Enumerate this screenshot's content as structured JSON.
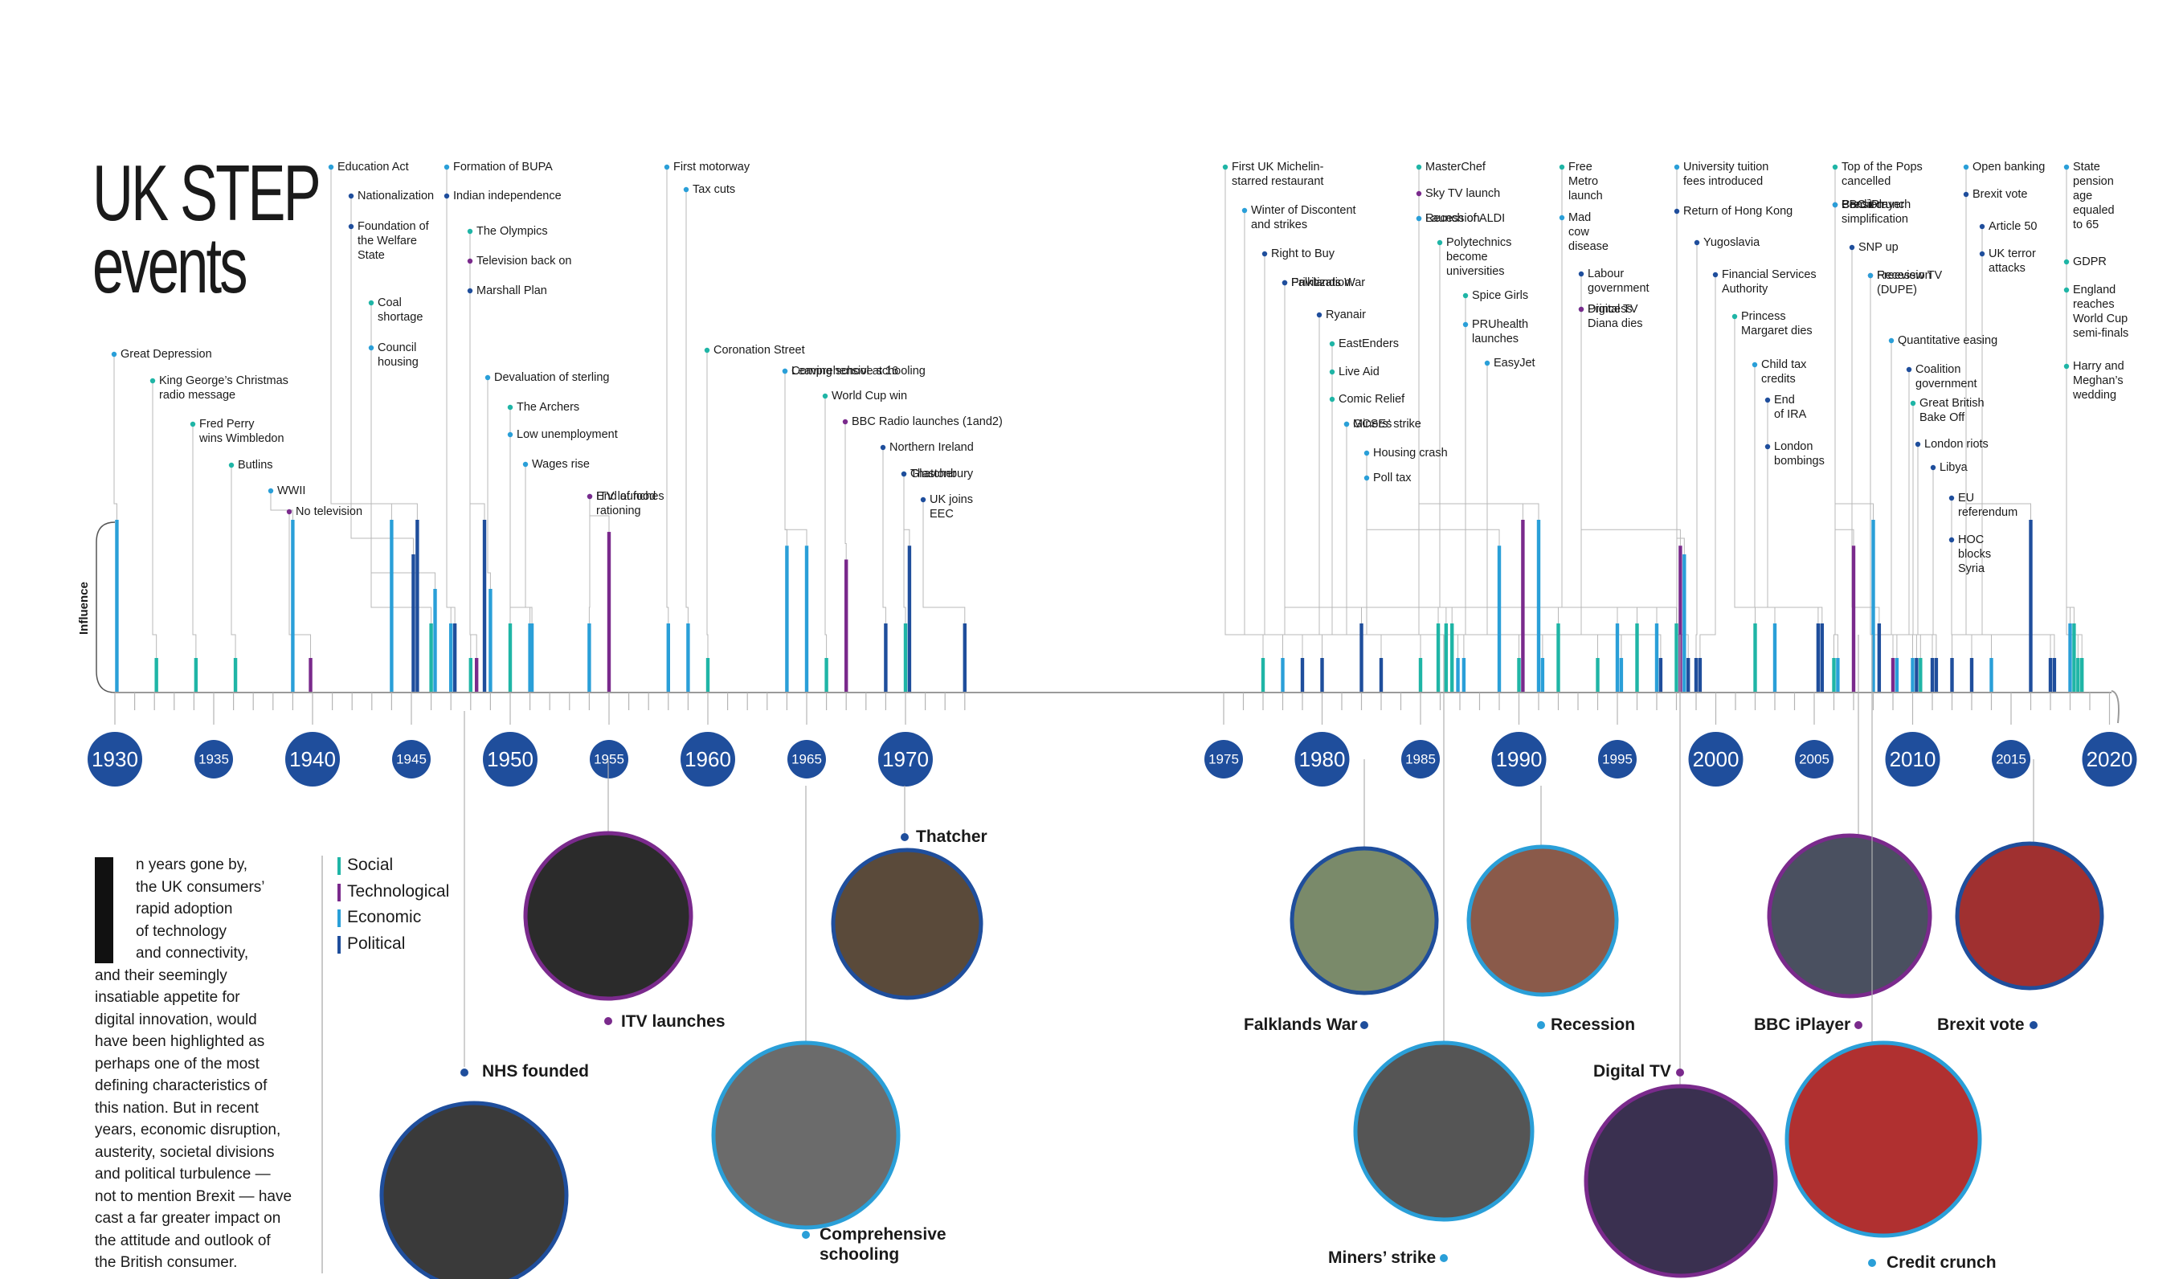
{
  "title": {
    "line1": "UK STEP",
    "line2": "events"
  },
  "axis_label": "Influence",
  "legend": [
    {
      "label": "Social",
      "color": "#1fb5a6"
    },
    {
      "label": "Technological",
      "color": "#7a2a8c"
    },
    {
      "label": "Economic",
      "color": "#2a9fd8"
    },
    {
      "label": "Political",
      "color": "#1f4e9c"
    }
  ],
  "intro": {
    "lines": [
      "n years gone by,",
      "the UK consumers’",
      "rapid adoption",
      "of technology",
      "and connectivity,",
      "and their seemingly",
      "insatiable appetite for",
      "digital innovation, would",
      "have been highlighted as",
      "perhaps one of the most",
      "defining characteristics of",
      "this nation. But in recent",
      "years, economic disruption,",
      "austerity, societal divisions",
      "and political turbulence —",
      "not to mention Brexit — have",
      "cast a far greater impact on",
      "the attitude and outlook of",
      "the British consumer."
    ]
  },
  "years": [
    {
      "label": "1930",
      "major": true
    },
    {
      "label": "1935",
      "major": false
    },
    {
      "label": "1940",
      "major": true
    },
    {
      "label": "1945",
      "major": false
    },
    {
      "label": "1950",
      "major": true
    },
    {
      "label": "1955",
      "major": false
    },
    {
      "label": "1960",
      "major": true
    },
    {
      "label": "1965",
      "major": false
    },
    {
      "label": "1970",
      "major": true
    },
    {
      "label": "1975",
      "major": false
    },
    {
      "label": "1980",
      "major": true
    },
    {
      "label": "1985",
      "major": false
    },
    {
      "label": "1990",
      "major": true
    },
    {
      "label": "1995",
      "major": false
    },
    {
      "label": "2000",
      "major": true
    },
    {
      "label": "2005",
      "major": false
    },
    {
      "label": "2010",
      "major": true
    },
    {
      "label": "2015",
      "major": false
    },
    {
      "label": "2020",
      "major": true
    }
  ],
  "events": [
    {
      "lines": [
        "Great Depression"
      ],
      "year": 1930.1,
      "cat": "economic",
      "influence": 1.0
    },
    {
      "lines": [
        "King George’s Christmas",
        "radio message"
      ],
      "year": 1932.1,
      "cat": "social",
      "influence": 0.2
    },
    {
      "lines": [
        "Fred Perry",
        "wins Wimbledon"
      ],
      "year": 1934.1,
      "cat": "social",
      "influence": 0.2
    },
    {
      "lines": [
        "Butlins"
      ],
      "year": 1936.1,
      "cat": "social",
      "influence": 0.2
    },
    {
      "lines": [
        "WWII"
      ],
      "year": 1939.0,
      "cat": "economic",
      "influence": 1.0
    },
    {
      "lines": [
        "No television"
      ],
      "year": 1939.9,
      "cat": "technological",
      "influence": 0.2
    },
    {
      "lines": [
        "Education Act"
      ],
      "year": 1944.0,
      "cat": "economic",
      "influence": 1.0
    },
    {
      "lines": [
        "Nationalization"
      ],
      "year": 1945.1,
      "cat": "political",
      "influence": 0.8
    },
    {
      "lines": [
        "Foundation of",
        "the Welfare",
        "State"
      ],
      "year": 1945.3,
      "cat": "political",
      "influence": 1.0
    },
    {
      "lines": [
        "Coal",
        "shortage"
      ],
      "year": 1946.0,
      "cat": "social",
      "influence": 0.4
    },
    {
      "lines": [
        "Council",
        "housing"
      ],
      "year": 1946.2,
      "cat": "economic",
      "influence": 0.6
    },
    {
      "lines": [
        "Formation of BUPA"
      ],
      "year": 1947.0,
      "cat": "economic",
      "influence": 0.4
    },
    {
      "lines": [
        "Indian independence"
      ],
      "year": 1947.2,
      "cat": "political",
      "influence": 0.4
    },
    {
      "lines": [
        "The Olympics"
      ],
      "year": 1948.0,
      "cat": "social",
      "influence": 0.2
    },
    {
      "lines": [
        "Television back on"
      ],
      "year": 1948.3,
      "cat": "technological",
      "influence": 0.2
    },
    {
      "lines": [
        "Marshall Plan"
      ],
      "year": 1948.7,
      "cat": "political",
      "influence": 1.0
    },
    {
      "lines": [
        "Devaluation of sterling"
      ],
      "year": 1949.0,
      "cat": "economic",
      "influence": 0.6
    },
    {
      "lines": [
        "The Archers"
      ],
      "year": 1950.0,
      "cat": "social",
      "influence": 0.4
    },
    {
      "lines": [
        "Low unemployment"
      ],
      "year": 1951.0,
      "cat": "economic",
      "influence": 0.4
    },
    {
      "lines": [
        "Wages rise"
      ],
      "year": 1951.1,
      "cat": "economic",
      "influence": 0.4
    },
    {
      "lines": [
        "End of food",
        "rationing"
      ],
      "year": 1954.0,
      "cat": "economic",
      "influence": 0.4
    },
    {
      "lines": [
        "ITV launches"
      ],
      "year": 1955.0,
      "cat": "technological",
      "influence": 0.93
    },
    {
      "lines": [
        "First motorway"
      ],
      "year": 1958.0,
      "cat": "economic",
      "influence": 0.4
    },
    {
      "lines": [
        "Tax cuts"
      ],
      "year": 1959.0,
      "cat": "economic",
      "influence": 0.4
    },
    {
      "lines": [
        "Coronation Street"
      ],
      "year": 1960.0,
      "cat": "social",
      "influence": 0.2
    },
    {
      "lines": [
        "Leaving school at 16"
      ],
      "year": 1964.0,
      "cat": "economic",
      "influence": 0.85
    },
    {
      "lines": [
        "Comprehensive schooling"
      ],
      "year": 1965.0,
      "cat": "economic",
      "influence": 0.85
    },
    {
      "lines": [
        "World Cup win"
      ],
      "year": 1966.0,
      "cat": "social",
      "influence": 0.2
    },
    {
      "lines": [
        "BBC Radio launches (1and2)"
      ],
      "year": 1967.0,
      "cat": "technological",
      "influence": 0.77
    },
    {
      "lines": [
        "Northern Ireland"
      ],
      "year": 1969.0,
      "cat": "political",
      "influence": 0.4
    },
    {
      "lines": [
        "Glastonbury"
      ],
      "year": 1970.0,
      "cat": "social",
      "influence": 0.4
    },
    {
      "lines": [
        "Thatcher"
      ],
      "year": 1970.2,
      "cat": "political",
      "influence": 0.85
    },
    {
      "lines": [
        "UK joins",
        "EEC"
      ],
      "year": 1973.0,
      "cat": "political",
      "influence": 0.4
    },
    {
      "lines": [
        "First UK Michelin-",
        "starred restaurant"
      ],
      "year": 1977.0,
      "cat": "social",
      "influence": 0.2
    },
    {
      "lines": [
        "Winter of Discontent",
        "and strikes"
      ],
      "year": 1978.0,
      "cat": "economic",
      "influence": 0.2
    },
    {
      "lines": [
        "Right to Buy"
      ],
      "year": 1979.0,
      "cat": "political",
      "influence": 0.2
    },
    {
      "lines": [
        "Privitization"
      ],
      "year": 1980.0,
      "cat": "political",
      "influence": 0.2
    },
    {
      "lines": [
        "Falklands War"
      ],
      "year": 1982.0,
      "cat": "political",
      "influence": 0.4
    },
    {
      "lines": [
        "Ryanair"
      ],
      "year": 1983.0,
      "cat": "political",
      "influence": 0.2
    },
    {
      "lines": [
        "EastEnders"
      ],
      "year": 1985.0,
      "cat": "social",
      "influence": 0.2
    },
    {
      "lines": [
        "Live Aid"
      ],
      "year": 1985.9,
      "cat": "social",
      "influence": 0.4
    },
    {
      "lines": [
        "Comic Relief"
      ],
      "year": 1986.3,
      "cat": "social",
      "influence": 0.4
    },
    {
      "lines": [
        "GCSEs"
      ],
      "year": 1986.6,
      "cat": "social",
      "influence": 0.4
    },
    {
      "lines": [
        "Miners’ strike"
      ],
      "year": 1986.9,
      "cat": "economic",
      "influence": 0.2
    },
    {
      "lines": [
        "Housing crash"
      ],
      "year": 1987.2,
      "cat": "economic",
      "influence": 0.2
    },
    {
      "lines": [
        "Poll tax"
      ],
      "year": 1989.0,
      "cat": "economic",
      "influence": 0.85
    },
    {
      "lines": [
        "MasterChef"
      ],
      "year": 1990.0,
      "cat": "social",
      "influence": 0.2
    },
    {
      "lines": [
        "Sky TV launch"
      ],
      "year": 1990.2,
      "cat": "technological",
      "influence": 1.0
    },
    {
      "lines": [
        "Launch of ALDI"
      ],
      "year": 1991.0,
      "cat": "economic",
      "influence": 1.0
    },
    {
      "lines": [
        "Recession"
      ],
      "year": 1991.2,
      "cat": "economic",
      "influence": 0.2
    },
    {
      "lines": [
        "Polytechnics",
        "become",
        "universities"
      ],
      "year": 1992.0,
      "cat": "social",
      "influence": 0.4
    },
    {
      "lines": [
        "Spice Girls"
      ],
      "year": 1994.0,
      "cat": "social",
      "influence": 0.2
    },
    {
      "lines": [
        "PRUhealth",
        "launches"
      ],
      "year": 1995.0,
      "cat": "economic",
      "influence": 0.4
    },
    {
      "lines": [
        "EasyJet"
      ],
      "year": 1995.2,
      "cat": "economic",
      "influence": 0.2
    },
    {
      "lines": [
        "Free",
        "Metro",
        "launch"
      ],
      "year": 1996.0,
      "cat": "social",
      "influence": 0.4
    },
    {
      "lines": [
        "Mad",
        "cow",
        "disease"
      ],
      "year": 1997.0,
      "cat": "economic",
      "influence": 0.4
    },
    {
      "lines": [
        "Labour",
        "government"
      ],
      "year": 1997.2,
      "cat": "political",
      "influence": 0.2
    },
    {
      "lines": [
        "Princess",
        "Diana dies"
      ],
      "year": 1998.0,
      "cat": "social",
      "influence": 0.4
    },
    {
      "lines": [
        "Digital TV"
      ],
      "year": 1998.2,
      "cat": "technological",
      "influence": 0.85
    },
    {
      "lines": [
        "University tuition",
        "fees introduced"
      ],
      "year": 1998.4,
      "cat": "economic",
      "influence": 0.8
    },
    {
      "lines": [
        "Return of Hong Kong"
      ],
      "year": 1998.6,
      "cat": "political",
      "influence": 0.2
    },
    {
      "lines": [
        "Yugoslavia"
      ],
      "year": 1999.0,
      "cat": "political",
      "influence": 0.2
    },
    {
      "lines": [
        "Financial Services",
        "Authority"
      ],
      "year": 1999.2,
      "cat": "political",
      "influence": 0.2
    },
    {
      "lines": [
        "Princess",
        "Margaret dies"
      ],
      "year": 2002.0,
      "cat": "social",
      "influence": 0.4
    },
    {
      "lines": [
        "Child tax",
        "credits"
      ],
      "year": 2003.0,
      "cat": "economic",
      "influence": 0.4
    },
    {
      "lines": [
        "End",
        "of IRA"
      ],
      "year": 2005.2,
      "cat": "political",
      "influence": 0.4
    },
    {
      "lines": [
        "London",
        "bombings"
      ],
      "year": 2005.4,
      "cat": "political",
      "influence": 0.4
    },
    {
      "lines": [
        "Top of the Pops",
        "cancelled"
      ],
      "year": 2006.0,
      "cat": "social",
      "influence": 0.2
    },
    {
      "lines": [
        "Pension",
        "simplification"
      ],
      "year": 2006.2,
      "cat": "economic",
      "influence": 0.2
    },
    {
      "lines": [
        "BBC iPlayer"
      ],
      "year": 2007.0,
      "cat": "technological",
      "influence": 0.85
    },
    {
      "lines": [
        "Credit crunch"
      ],
      "year": 2008.0,
      "cat": "economic",
      "influence": 1.0
    },
    {
      "lines": [
        "SNP up"
      ],
      "year": 2008.3,
      "cat": "political",
      "influence": 0.4
    },
    {
      "lines": [
        "Freeview TV"
      ],
      "year": 2009.0,
      "cat": "technological",
      "influence": 0.2
    },
    {
      "lines": [
        "Recession",
        "(DUPE)"
      ],
      "year": 2009.2,
      "cat": "economic",
      "influence": 0.2
    },
    {
      "lines": [
        "Quantitative easing"
      ],
      "year": 2010.0,
      "cat": "economic",
      "influence": 0.2
    },
    {
      "lines": [
        "Coalition",
        "government"
      ],
      "year": 2010.2,
      "cat": "political",
      "influence": 0.2
    },
    {
      "lines": [
        "Great British",
        "Bake Off"
      ],
      "year": 2010.4,
      "cat": "social",
      "influence": 0.2
    },
    {
      "lines": [
        "London riots"
      ],
      "year": 2011.0,
      "cat": "political",
      "influence": 0.2
    },
    {
      "lines": [
        "Libya"
      ],
      "year": 2011.2,
      "cat": "political",
      "influence": 0.2
    },
    {
      "lines": [
        "EU",
        "referendum"
      ],
      "year": 2012.0,
      "cat": "political",
      "influence": 0.2
    },
    {
      "lines": [
        "HOC",
        "blocks",
        "Syria"
      ],
      "year": 2013.0,
      "cat": "political",
      "influence": 0.2
    },
    {
      "lines": [
        "Open banking"
      ],
      "year": 2014.0,
      "cat": "economic",
      "influence": 0.2
    },
    {
      "lines": [
        "Brexit vote"
      ],
      "year": 2016.0,
      "cat": "political",
      "influence": 1.0
    },
    {
      "lines": [
        "Article 50"
      ],
      "year": 2017.0,
      "cat": "political",
      "influence": 0.2
    },
    {
      "lines": [
        "UK terror",
        "attacks"
      ],
      "year": 2017.2,
      "cat": "political",
      "influence": 0.2
    },
    {
      "lines": [
        "State",
        "pension",
        "age",
        "equaled",
        "to 65"
      ],
      "year": 2018.0,
      "cat": "economic",
      "influence": 0.4
    },
    {
      "lines": [
        "GDPR"
      ],
      "year": 2018.2,
      "cat": "social",
      "influence": 0.4
    },
    {
      "lines": [
        "England",
        "reaches",
        "World Cup",
        "semi-finals"
      ],
      "year": 2018.4,
      "cat": "social",
      "influence": 0.2
    },
    {
      "lines": [
        "Harry and",
        "Meghan’s",
        "wedding"
      ],
      "year": 2018.6,
      "cat": "social",
      "influence": 0.2
    }
  ],
  "photo_labels": [
    {
      "label": "NHS founded",
      "year": 1948,
      "cat": "political"
    },
    {
      "label": "ITV launches",
      "year": 1955,
      "cat": "technological"
    },
    {
      "label": "Comprehensive",
      "label2": "schooling",
      "year": 1965,
      "cat": "economic"
    },
    {
      "label": "Thatcher",
      "year": 1970,
      "cat": "political"
    },
    {
      "label": "Falklands War",
      "year": 1982,
      "cat": "political"
    },
    {
      "label": "Miners’ strike",
      "year": 1986,
      "cat": "economic"
    },
    {
      "label": "Recession",
      "year": 1991,
      "cat": "economic"
    },
    {
      "label": "Digital TV",
      "year": 1998,
      "cat": "technological"
    },
    {
      "label": "BBC iPlayer",
      "year": 2007,
      "cat": "technological"
    },
    {
      "label": "Credit crunch",
      "year": 2008,
      "cat": "economic"
    },
    {
      "label": "Brexit vote",
      "year": 2016,
      "cat": "political"
    }
  ]
}
